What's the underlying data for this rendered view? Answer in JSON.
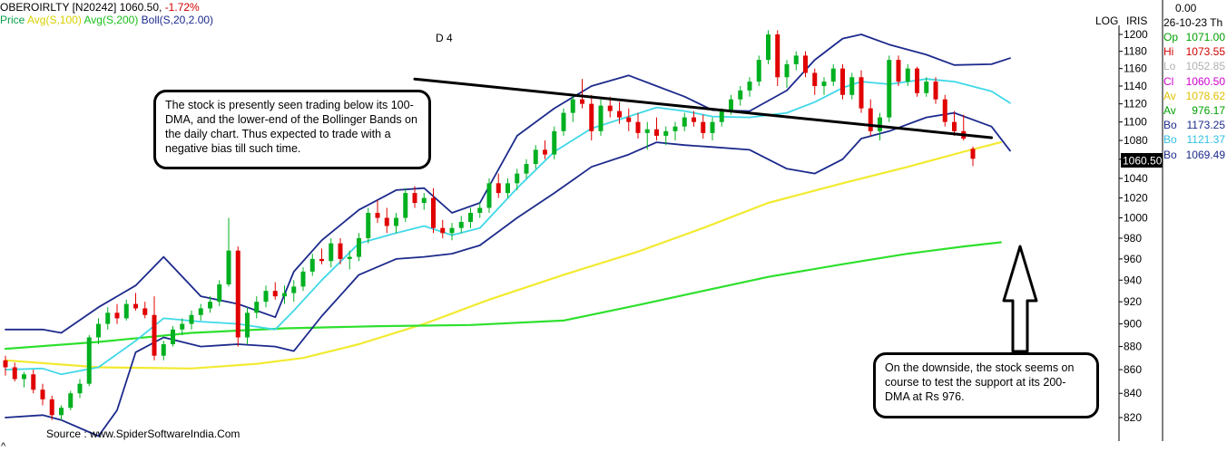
{
  "header": {
    "symbol": "OBEROIRLTY [N20242]",
    "price": "1060.50,",
    "change": "-1.72%",
    "indicators": [
      {
        "label": "Price",
        "color": "#0aa04a"
      },
      {
        "label": "Avg(S,100)",
        "color": "#e8e000"
      },
      {
        "label": "Avg(S,200)",
        "color": "#22cc22"
      },
      {
        "label": "Boll(S,20,2.00)",
        "color": "#1c2a8c"
      }
    ],
    "marker": "D 4"
  },
  "axis_flags": {
    "log": "LOG",
    "source_name": "IRIS"
  },
  "price_tag": "1060.50",
  "info_panel": {
    "top_value": "0.00",
    "date": "26-10-23",
    "day": "Th",
    "rows": [
      {
        "key": "Op",
        "value": "1071.00",
        "color": "#00a000"
      },
      {
        "key": "Hi",
        "value": "1073.55",
        "color": "#d00000"
      },
      {
        "key": "Lo",
        "value": "1052.85",
        "color": "#b0b0b0"
      },
      {
        "key": "Cl",
        "value": "1060.50",
        "color": "#d000d0"
      },
      {
        "key": "Av",
        "value": "1078.62",
        "color": "#e0c000"
      },
      {
        "key": "Av",
        "value": "976.17",
        "color": "#00a000"
      },
      {
        "key": "Bo",
        "value": "1173.25",
        "color": "#1c2a8c"
      },
      {
        "key": "Bo",
        "value": "1121.37",
        "color": "#30c0e0"
      },
      {
        "key": "Bo",
        "value": "1069.49",
        "color": "#1c2a8c"
      }
    ]
  },
  "annotations": {
    "top": "The stock is presently seen trading below its 100-DMA, and the lower-end of the Bollinger Bands on the daily chart. Thus expected to trade with a negative bias till such time.",
    "bottom": "On the downside, the stock seems on course to test the support at its 200-DMA at Rs 976."
  },
  "source": "Source : www.SpiderSoftwareIndia.Com",
  "chart_data": {
    "type": "line",
    "title": "OBEROIRLTY [N20242]",
    "y_scale": "log",
    "ylim": [
      805,
      1215
    ],
    "yticks": [
      820,
      840,
      860,
      880,
      900,
      920,
      940,
      960,
      980,
      1000,
      1020,
      1040,
      1060,
      1080,
      1100,
      1120,
      1140,
      1160,
      1180,
      1200
    ],
    "x_points": 110,
    "last_close": 1060.5,
    "series": [
      {
        "name": "Avg(S,100)",
        "color": "#f2ea30",
        "values": [
          [
            0,
            868
          ],
          [
            10,
            862
          ],
          [
            20,
            861
          ],
          [
            27,
            865
          ],
          [
            32,
            870
          ],
          [
            38,
            882
          ],
          [
            45,
            900
          ],
          [
            52,
            922
          ],
          [
            60,
            945
          ],
          [
            68,
            967
          ],
          [
            75,
            990
          ],
          [
            82,
            1015
          ],
          [
            90,
            1035
          ],
          [
            97,
            1052
          ],
          [
            103,
            1068
          ],
          [
            107,
            1078
          ]
        ]
      },
      {
        "name": "Avg(S,200)",
        "color": "#2ee02e",
        "values": [
          [
            0,
            878
          ],
          [
            10,
            884
          ],
          [
            20,
            892
          ],
          [
            30,
            896
          ],
          [
            40,
            898
          ],
          [
            50,
            899
          ],
          [
            60,
            903
          ],
          [
            68,
            917
          ],
          [
            75,
            930
          ],
          [
            82,
            943
          ],
          [
            90,
            955
          ],
          [
            97,
            965
          ],
          [
            103,
            972
          ],
          [
            107,
            976
          ]
        ]
      },
      {
        "name": "Boll Upper",
        "color": "#1c2a8c",
        "values": [
          [
            0,
            895
          ],
          [
            4,
            895
          ],
          [
            6,
            892
          ],
          [
            10,
            915
          ],
          [
            14,
            935
          ],
          [
            17,
            962
          ],
          [
            21,
            925
          ],
          [
            25,
            918
          ],
          [
            29,
            906
          ],
          [
            31,
            948
          ],
          [
            34,
            978
          ],
          [
            38,
            1008
          ],
          [
            42,
            1028
          ],
          [
            45,
            1030
          ],
          [
            48,
            1005
          ],
          [
            51,
            1015
          ],
          [
            55,
            1085
          ],
          [
            59,
            1115
          ],
          [
            63,
            1140
          ],
          [
            67,
            1152
          ],
          [
            70,
            1140
          ],
          [
            73,
            1128
          ],
          [
            76,
            1113
          ],
          [
            80,
            1112
          ],
          [
            84,
            1135
          ],
          [
            87,
            1170
          ],
          [
            90,
            1195
          ],
          [
            92,
            1200
          ],
          [
            95,
            1188
          ],
          [
            99,
            1176
          ],
          [
            102,
            1164
          ],
          [
            106,
            1165
          ],
          [
            108,
            1172
          ]
        ]
      },
      {
        "name": "Boll Mid",
        "color": "#40d8e8",
        "values": [
          [
            0,
            860
          ],
          [
            4,
            861
          ],
          [
            6,
            856
          ],
          [
            10,
            862
          ],
          [
            14,
            885
          ],
          [
            17,
            905
          ],
          [
            21,
            902
          ],
          [
            25,
            900
          ],
          [
            29,
            895
          ],
          [
            31,
            912
          ],
          [
            34,
            940
          ],
          [
            38,
            975
          ],
          [
            42,
            985
          ],
          [
            45,
            992
          ],
          [
            48,
            983
          ],
          [
            51,
            990
          ],
          [
            55,
            1030
          ],
          [
            59,
            1068
          ],
          [
            63,
            1093
          ],
          [
            67,
            1106
          ],
          [
            70,
            1116
          ],
          [
            73,
            1112
          ],
          [
            76,
            1106
          ],
          [
            80,
            1105
          ],
          [
            84,
            1110
          ],
          [
            87,
            1122
          ],
          [
            90,
            1138
          ],
          [
            92,
            1145
          ],
          [
            95,
            1142
          ],
          [
            99,
            1148
          ],
          [
            102,
            1145
          ],
          [
            106,
            1134
          ],
          [
            108,
            1121
          ]
        ]
      },
      {
        "name": "Boll Lower",
        "color": "#1c2a8c",
        "values": [
          [
            0,
            820
          ],
          [
            4,
            822
          ],
          [
            6,
            818
          ],
          [
            10,
            805
          ],
          [
            12,
            826
          ],
          [
            14,
            875
          ],
          [
            17,
            888
          ],
          [
            21,
            880
          ],
          [
            25,
            882
          ],
          [
            29,
            880
          ],
          [
            31,
            876
          ],
          [
            34,
            907
          ],
          [
            38,
            945
          ],
          [
            42,
            960
          ],
          [
            45,
            962
          ],
          [
            48,
            965
          ],
          [
            51,
            973
          ],
          [
            55,
            1000
          ],
          [
            59,
            1025
          ],
          [
            63,
            1052
          ],
          [
            67,
            1065
          ],
          [
            70,
            1078
          ],
          [
            73,
            1075
          ],
          [
            76,
            1073
          ],
          [
            80,
            1070
          ],
          [
            84,
            1050
          ],
          [
            87,
            1045
          ],
          [
            90,
            1060
          ],
          [
            92,
            1082
          ],
          [
            95,
            1090
          ],
          [
            99,
            1105
          ],
          [
            102,
            1110
          ],
          [
            106,
            1095
          ],
          [
            108,
            1069
          ]
        ]
      },
      {
        "name": "Trendline",
        "color": "#000000",
        "values": [
          [
            44,
            1148
          ],
          [
            106,
            1083
          ]
        ]
      }
    ],
    "candles": [
      [
        868,
        872,
        855,
        862
      ],
      [
        862,
        866,
        850,
        852
      ],
      [
        852,
        858,
        845,
        856
      ],
      [
        856,
        860,
        840,
        843
      ],
      [
        843,
        848,
        830,
        835
      ],
      [
        835,
        838,
        818,
        822
      ],
      [
        822,
        830,
        818,
        828
      ],
      [
        828,
        842,
        826,
        840
      ],
      [
        840,
        852,
        836,
        848
      ],
      [
        848,
        890,
        846,
        888
      ],
      [
        888,
        905,
        882,
        900
      ],
      [
        900,
        915,
        895,
        910
      ],
      [
        910,
        918,
        900,
        905
      ],
      [
        905,
        922,
        903,
        918
      ],
      [
        918,
        928,
        912,
        914
      ],
      [
        914,
        920,
        905,
        908
      ],
      [
        908,
        925,
        868,
        872
      ],
      [
        872,
        885,
        868,
        882
      ],
      [
        882,
        898,
        880,
        895
      ],
      [
        895,
        905,
        890,
        900
      ],
      [
        900,
        912,
        895,
        908
      ],
      [
        908,
        918,
        903,
        914
      ],
      [
        914,
        925,
        910,
        920
      ],
      [
        920,
        940,
        916,
        936
      ],
      [
        936,
        1000,
        934,
        968
      ],
      [
        968,
        972,
        880,
        888
      ],
      [
        888,
        915,
        882,
        910
      ],
      [
        910,
        925,
        905,
        920
      ],
      [
        920,
        935,
        915,
        930
      ],
      [
        930,
        938,
        922,
        925
      ],
      [
        925,
        935,
        918,
        928
      ],
      [
        928,
        940,
        920,
        934
      ],
      [
        934,
        952,
        930,
        948
      ],
      [
        948,
        965,
        944,
        960
      ],
      [
        960,
        970,
        955,
        958
      ],
      [
        958,
        980,
        952,
        975
      ],
      [
        975,
        980,
        955,
        960
      ],
      [
        960,
        968,
        950,
        962
      ],
      [
        962,
        985,
        958,
        980
      ],
      [
        980,
        1010,
        975,
        1005
      ],
      [
        1005,
        1018,
        995,
        1000
      ],
      [
        1000,
        1010,
        985,
        992
      ],
      [
        992,
        1005,
        985,
        1000
      ],
      [
        1000,
        1030,
        996,
        1025
      ],
      [
        1025,
        1032,
        1010,
        1015
      ],
      [
        1015,
        1025,
        1008,
        1020
      ],
      [
        1020,
        1030,
        985,
        990
      ],
      [
        990,
        998,
        980,
        985
      ],
      [
        985,
        995,
        978,
        990
      ],
      [
        990,
        1002,
        985,
        996
      ],
      [
        996,
        1010,
        990,
        1005
      ],
      [
        1005,
        1015,
        1000,
        1010
      ],
      [
        1010,
        1040,
        1005,
        1035
      ],
      [
        1035,
        1045,
        1020,
        1025
      ],
      [
        1025,
        1040,
        1020,
        1035
      ],
      [
        1035,
        1050,
        1028,
        1045
      ],
      [
        1045,
        1060,
        1040,
        1055
      ],
      [
        1055,
        1075,
        1050,
        1070
      ],
      [
        1070,
        1080,
        1060,
        1065
      ],
      [
        1065,
        1095,
        1060,
        1090
      ],
      [
        1090,
        1115,
        1085,
        1110
      ],
      [
        1110,
        1130,
        1100,
        1125
      ],
      [
        1125,
        1148,
        1115,
        1120
      ],
      [
        1120,
        1130,
        1080,
        1090
      ],
      [
        1090,
        1125,
        1085,
        1118
      ],
      [
        1118,
        1128,
        1105,
        1112
      ],
      [
        1112,
        1122,
        1098,
        1105
      ],
      [
        1105,
        1115,
        1090,
        1100
      ],
      [
        1100,
        1110,
        1082,
        1088
      ],
      [
        1088,
        1100,
        1070,
        1092
      ],
      [
        1092,
        1105,
        1080,
        1085
      ],
      [
        1085,
        1095,
        1075,
        1090
      ],
      [
        1090,
        1100,
        1080,
        1095
      ],
      [
        1095,
        1110,
        1090,
        1105
      ],
      [
        1105,
        1112,
        1095,
        1100
      ],
      [
        1100,
        1108,
        1082,
        1088
      ],
      [
        1088,
        1105,
        1080,
        1100
      ],
      [
        1100,
        1115,
        1095,
        1112
      ],
      [
        1112,
        1130,
        1108,
        1125
      ],
      [
        1125,
        1140,
        1118,
        1135
      ],
      [
        1135,
        1150,
        1128,
        1145
      ],
      [
        1145,
        1175,
        1140,
        1170
      ],
      [
        1170,
        1205,
        1165,
        1200
      ],
      [
        1200,
        1205,
        1140,
        1150
      ],
      [
        1150,
        1170,
        1138,
        1165
      ],
      [
        1165,
        1180,
        1158,
        1175
      ],
      [
        1175,
        1180,
        1150,
        1155
      ],
      [
        1155,
        1160,
        1130,
        1140
      ],
      [
        1140,
        1150,
        1130,
        1145
      ],
      [
        1145,
        1165,
        1140,
        1160
      ],
      [
        1160,
        1165,
        1125,
        1130
      ],
      [
        1130,
        1155,
        1125,
        1150
      ],
      [
        1150,
        1158,
        1110,
        1115
      ],
      [
        1115,
        1125,
        1085,
        1090
      ],
      [
        1090,
        1110,
        1080,
        1105
      ],
      [
        1105,
        1175,
        1100,
        1170
      ],
      [
        1170,
        1175,
        1140,
        1145
      ],
      [
        1145,
        1165,
        1140,
        1160
      ],
      [
        1160,
        1162,
        1128,
        1132
      ],
      [
        1132,
        1150,
        1128,
        1145
      ],
      [
        1145,
        1150,
        1120,
        1125
      ],
      [
        1125,
        1130,
        1095,
        1100
      ],
      [
        1100,
        1112,
        1085,
        1090
      ],
      [
        1090,
        1108,
        1080,
        1082
      ],
      [
        1071,
        1073.55,
        1052.85,
        1060.5
      ]
    ]
  }
}
